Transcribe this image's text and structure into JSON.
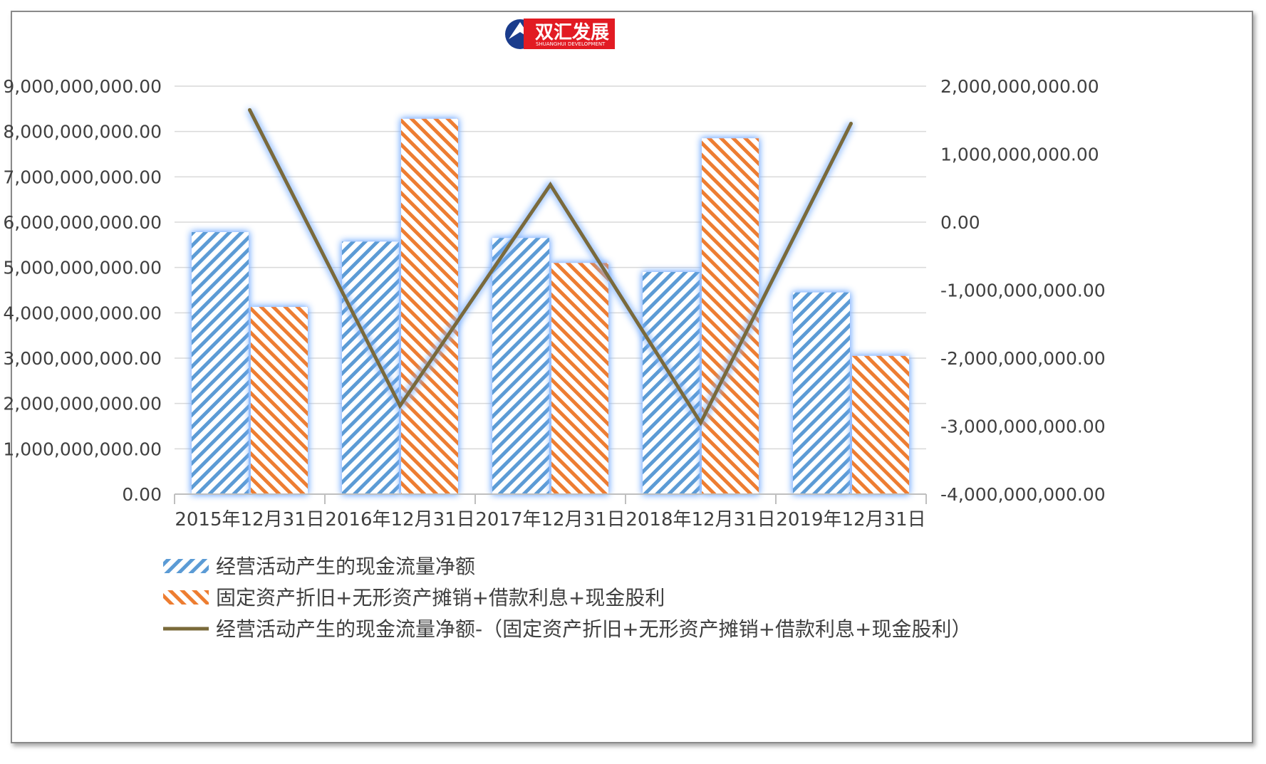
{
  "logo": {
    "text": "双汇发展",
    "subtext": "SHUANGHUI DEVELOPMENT",
    "color_red": "#e21b23",
    "color_blue": "#1a3c8c"
  },
  "chart_data": {
    "type": "bar",
    "categories": [
      "2015年12月31日",
      "2016年12月31日",
      "2017年12月31日",
      "2018年12月31日",
      "2019年12月31日"
    ],
    "series": [
      {
        "name": "经营活动产生的现金流量净额",
        "type": "bar",
        "axis": "left",
        "color": "#5b9bd5",
        "pattern": "diagonal-stripes",
        "values": [
          5780000000,
          5570000000,
          5650000000,
          4900000000,
          4450000000
        ]
      },
      {
        "name": "固定资产折旧+无形资产摊销+借款利息+现金股利",
        "type": "bar",
        "axis": "left",
        "color": "#ed7d31",
        "pattern": "diagonal-stripes",
        "values": [
          4130000000,
          8280000000,
          5100000000,
          7850000000,
          3050000000
        ]
      },
      {
        "name": "经营活动产生的现金流量净额-（固定资产折旧+无形资产摊销+借款利息+现金股利）",
        "type": "line",
        "axis": "right",
        "color": "#7a6a3a",
        "values": [
          1650000000,
          -2700000000,
          550000000,
          -2950000000,
          1450000000
        ]
      }
    ],
    "y_left": {
      "min": 0,
      "max": 9000000000,
      "ticks": [
        0,
        1000000000,
        2000000000,
        3000000000,
        4000000000,
        5000000000,
        6000000000,
        7000000000,
        8000000000,
        9000000000
      ],
      "tick_labels": [
        "0.00",
        "1,000,000,000.00",
        "2,000,000,000.00",
        "3,000,000,000.00",
        "4,000,000,000.00",
        "5,000,000,000.00",
        "6,000,000,000.00",
        "7,000,000,000.00",
        "8,000,000,000.00",
        "9,000,000,000.00"
      ]
    },
    "y_right": {
      "min": -4000000000,
      "max": 2000000000,
      "ticks": [
        -4000000000,
        -3000000000,
        -2000000000,
        -1000000000,
        0,
        1000000000,
        2000000000
      ],
      "tick_labels": [
        "-4,000,000,000.00",
        "-3,000,000,000.00",
        "-2,000,000,000.00",
        "-1,000,000,000.00",
        "0.00",
        "1,000,000,000.00",
        "2,000,000,000.00"
      ]
    },
    "grid": true,
    "legend_position": "bottom"
  }
}
